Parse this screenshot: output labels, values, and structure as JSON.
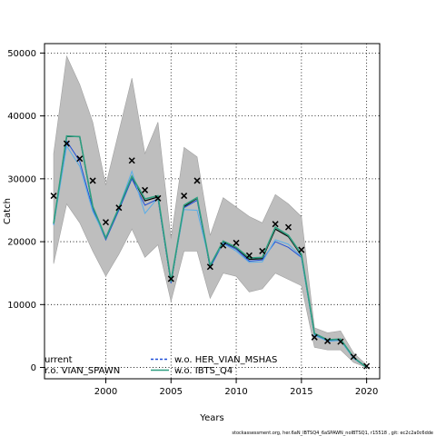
{
  "chart_data": {
    "type": "line",
    "xlabel": "Years",
    "ylabel": "Catch",
    "xlim": [
      1995.3,
      2021.0
    ],
    "ylim": [
      -1800,
      51500
    ],
    "x_ticks": [
      2000,
      2005,
      2010,
      2015,
      2020
    ],
    "y_ticks": [
      0,
      10000,
      20000,
      30000,
      40000,
      50000
    ],
    "grid": true,
    "x": [
      1996,
      1997,
      1998,
      1999,
      2000,
      2001,
      2002,
      2003,
      2004,
      2005,
      2006,
      2007,
      2008,
      2009,
      2010,
      2011,
      2012,
      2013,
      2014,
      2015,
      2016,
      2017,
      2018,
      2019,
      2020
    ],
    "band": {
      "upper": [
        34000,
        49500,
        45000,
        39000,
        29000,
        37500,
        46000,
        34000,
        39000,
        20500,
        35000,
        33500,
        21000,
        27000,
        25500,
        24000,
        23000,
        27500,
        26000,
        24000,
        6300,
        5500,
        5800,
        2300,
        400
      ],
      "lower": [
        16500,
        26000,
        23000,
        18500,
        14500,
        18000,
        22000,
        17500,
        19500,
        10500,
        18500,
        18500,
        11000,
        15000,
        14500,
        12000,
        12500,
        15000,
        14000,
        13000,
        3200,
        2800,
        2800,
        800,
        0
      ]
    },
    "series": [
      {
        "name": "current",
        "color": "#000000",
        "values": [
          22800,
          36700,
          36700,
          25500,
          20500,
          25200,
          30300,
          26500,
          27100,
          13500,
          25600,
          26900,
          16000,
          20000,
          19000,
          17200,
          17300,
          22000,
          20800,
          17800,
          5300,
          4300,
          4400,
          1500,
          0
        ]
      },
      {
        "name": "w.o. VIAN_SPAWN",
        "color": "#1f4fd8",
        "values": [
          22700,
          36000,
          32800,
          25200,
          20300,
          25000,
          30000,
          25800,
          26800,
          13400,
          25400,
          26600,
          15900,
          19800,
          18800,
          16900,
          17100,
          20000,
          19100,
          17500,
          5200,
          4200,
          4300,
          1500,
          0
        ]
      },
      {
        "name": "w.o. HER_VIAN_MSHAS",
        "color": "#5aaee8",
        "values": [
          22600,
          35200,
          32000,
          24800,
          20600,
          25400,
          31200,
          24500,
          27000,
          13600,
          25100,
          25000,
          16400,
          19700,
          18500,
          16700,
          16800,
          20300,
          19600,
          17600,
          5100,
          4200,
          4300,
          1450,
          0
        ]
      },
      {
        "name": "w.o. IBTS_Q4",
        "color": "#2e9e80",
        "values": [
          22900,
          36800,
          36700,
          25600,
          20600,
          25400,
          30400,
          26800,
          27300,
          13700,
          25800,
          27000,
          16200,
          20100,
          19100,
          17400,
          17500,
          22300,
          21000,
          18000,
          5400,
          4400,
          4500,
          1600,
          0
        ]
      }
    ],
    "observed": {
      "marker": "x",
      "x": [
        1996,
        1997,
        1998,
        1999,
        2000,
        2001,
        2002,
        2003,
        2004,
        2005,
        2006,
        2007,
        2008,
        2009,
        2010,
        2011,
        2012,
        2013,
        2014,
        2015,
        2016,
        2017,
        2018,
        2019,
        2020
      ],
      "values": [
        27300,
        35600,
        33200,
        29700,
        23100,
        25400,
        32900,
        28200,
        26900,
        14100,
        27300,
        29700,
        16000,
        19400,
        19800,
        17800,
        18500,
        22800,
        22300,
        18700,
        4800,
        4200,
        4100,
        1700,
        200
      ]
    },
    "legend": {
      "placement": "bottom-left",
      "entries": [
        {
          "label": "urrent",
          "style": "none",
          "color": "#000000"
        },
        {
          "label": "w.o. HER_VIAN_MSHAS",
          "style": "dashed",
          "color": "#1f4fd8"
        },
        {
          "label": "r.o. VIAN_SPAWN",
          "style": "none",
          "color": "#000000"
        },
        {
          "label": "w.o. IBTS_Q4",
          "style": "solid",
          "color": "#2e9e80"
        }
      ]
    },
    "footer": "stockassessment.org, her.6aN_IBTSQ4_6aSPAWN_noIBTSQ1, r15518 , git: ec2c2a0c6dde"
  }
}
